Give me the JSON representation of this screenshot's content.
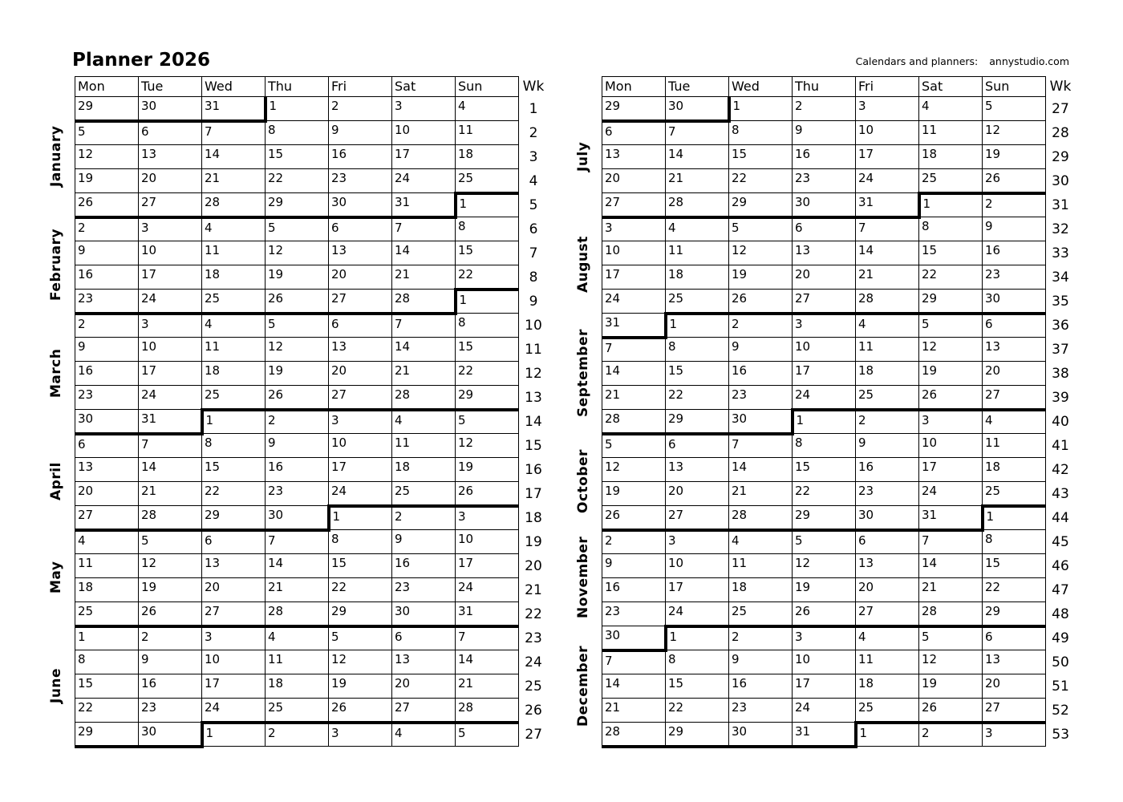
{
  "title": "Planner 2026",
  "credit": {
    "label": "Calendars and planners:",
    "site": "annystudio.com"
  },
  "day_headers": [
    "Mon",
    "Tue",
    "Wed",
    "Thu",
    "Fri",
    "Sat",
    "Sun"
  ],
  "week_column_header": "Wk",
  "colors": {
    "ink": "#000000",
    "paper": "#ffffff"
  },
  "tables": [
    {
      "name": "january-june",
      "months": [
        {
          "name": "January",
          "rows": 5
        },
        {
          "name": "February",
          "rows": 4
        },
        {
          "name": "March",
          "rows": 5
        },
        {
          "name": "April",
          "rows": 4
        },
        {
          "name": "May",
          "rows": 4
        },
        {
          "name": "June",
          "rows": 5
        }
      ],
      "weeks": [
        {
          "wk": 1,
          "days": [
            29,
            30,
            31,
            1,
            2,
            3,
            4
          ]
        },
        {
          "wk": 2,
          "days": [
            5,
            6,
            7,
            8,
            9,
            10,
            11
          ]
        },
        {
          "wk": 3,
          "days": [
            12,
            13,
            14,
            15,
            16,
            17,
            18
          ]
        },
        {
          "wk": 4,
          "days": [
            19,
            20,
            21,
            22,
            23,
            24,
            25
          ]
        },
        {
          "wk": 5,
          "days": [
            26,
            27,
            28,
            29,
            30,
            31,
            1
          ]
        },
        {
          "wk": 6,
          "days": [
            2,
            3,
            4,
            5,
            6,
            7,
            8
          ]
        },
        {
          "wk": 7,
          "days": [
            9,
            10,
            11,
            12,
            13,
            14,
            15
          ]
        },
        {
          "wk": 8,
          "days": [
            16,
            17,
            18,
            19,
            20,
            21,
            22
          ]
        },
        {
          "wk": 9,
          "days": [
            23,
            24,
            25,
            26,
            27,
            28,
            1
          ]
        },
        {
          "wk": 10,
          "days": [
            2,
            3,
            4,
            5,
            6,
            7,
            8
          ]
        },
        {
          "wk": 11,
          "days": [
            9,
            10,
            11,
            12,
            13,
            14,
            15
          ]
        },
        {
          "wk": 12,
          "days": [
            16,
            17,
            18,
            19,
            20,
            21,
            22
          ]
        },
        {
          "wk": 13,
          "days": [
            23,
            24,
            25,
            26,
            27,
            28,
            29
          ]
        },
        {
          "wk": 14,
          "days": [
            30,
            31,
            1,
            2,
            3,
            4,
            5
          ]
        },
        {
          "wk": 15,
          "days": [
            6,
            7,
            8,
            9,
            10,
            11,
            12
          ]
        },
        {
          "wk": 16,
          "days": [
            13,
            14,
            15,
            16,
            17,
            18,
            19
          ]
        },
        {
          "wk": 17,
          "days": [
            20,
            21,
            22,
            23,
            24,
            25,
            26
          ]
        },
        {
          "wk": 18,
          "days": [
            27,
            28,
            29,
            30,
            1,
            2,
            3
          ]
        },
        {
          "wk": 19,
          "days": [
            4,
            5,
            6,
            7,
            8,
            9,
            10
          ]
        },
        {
          "wk": 20,
          "days": [
            11,
            12,
            13,
            14,
            15,
            16,
            17
          ]
        },
        {
          "wk": 21,
          "days": [
            18,
            19,
            20,
            21,
            22,
            23,
            24
          ]
        },
        {
          "wk": 22,
          "days": [
            25,
            26,
            27,
            28,
            29,
            30,
            31
          ]
        },
        {
          "wk": 23,
          "days": [
            1,
            2,
            3,
            4,
            5,
            6,
            7
          ]
        },
        {
          "wk": 24,
          "days": [
            8,
            9,
            10,
            11,
            12,
            13,
            14
          ]
        },
        {
          "wk": 25,
          "days": [
            15,
            16,
            17,
            18,
            19,
            20,
            21
          ]
        },
        {
          "wk": 26,
          "days": [
            22,
            23,
            24,
            25,
            26,
            27,
            28
          ]
        },
        {
          "wk": 27,
          "days": [
            29,
            30,
            1,
            2,
            3,
            4,
            5
          ]
        }
      ]
    },
    {
      "name": "july-december",
      "months": [
        {
          "name": "July",
          "rows": 5
        },
        {
          "name": "August",
          "rows": 4
        },
        {
          "name": "September",
          "rows": 5
        },
        {
          "name": "October",
          "rows": 4
        },
        {
          "name": "November",
          "rows": 4
        },
        {
          "name": "December",
          "rows": 5
        }
      ],
      "weeks": [
        {
          "wk": 27,
          "days": [
            29,
            30,
            1,
            2,
            3,
            4,
            5
          ]
        },
        {
          "wk": 28,
          "days": [
            6,
            7,
            8,
            9,
            10,
            11,
            12
          ]
        },
        {
          "wk": 29,
          "days": [
            13,
            14,
            15,
            16,
            17,
            18,
            19
          ]
        },
        {
          "wk": 30,
          "days": [
            20,
            21,
            22,
            23,
            24,
            25,
            26
          ]
        },
        {
          "wk": 31,
          "days": [
            27,
            28,
            29,
            30,
            31,
            1,
            2
          ]
        },
        {
          "wk": 32,
          "days": [
            3,
            4,
            5,
            6,
            7,
            8,
            9
          ]
        },
        {
          "wk": 33,
          "days": [
            10,
            11,
            12,
            13,
            14,
            15,
            16
          ]
        },
        {
          "wk": 34,
          "days": [
            17,
            18,
            19,
            20,
            21,
            22,
            23
          ]
        },
        {
          "wk": 35,
          "days": [
            24,
            25,
            26,
            27,
            28,
            29,
            30
          ]
        },
        {
          "wk": 36,
          "days": [
            31,
            1,
            2,
            3,
            4,
            5,
            6
          ]
        },
        {
          "wk": 37,
          "days": [
            7,
            8,
            9,
            10,
            11,
            12,
            13
          ]
        },
        {
          "wk": 38,
          "days": [
            14,
            15,
            16,
            17,
            18,
            19,
            20
          ]
        },
        {
          "wk": 39,
          "days": [
            21,
            22,
            23,
            24,
            25,
            26,
            27
          ]
        },
        {
          "wk": 40,
          "days": [
            28,
            29,
            30,
            1,
            2,
            3,
            4
          ]
        },
        {
          "wk": 41,
          "days": [
            5,
            6,
            7,
            8,
            9,
            10,
            11
          ]
        },
        {
          "wk": 42,
          "days": [
            12,
            13,
            14,
            15,
            16,
            17,
            18
          ]
        },
        {
          "wk": 43,
          "days": [
            19,
            20,
            21,
            22,
            23,
            24,
            25
          ]
        },
        {
          "wk": 44,
          "days": [
            26,
            27,
            28,
            29,
            30,
            31,
            1
          ]
        },
        {
          "wk": 45,
          "days": [
            2,
            3,
            4,
            5,
            6,
            7,
            8
          ]
        },
        {
          "wk": 46,
          "days": [
            9,
            10,
            11,
            12,
            13,
            14,
            15
          ]
        },
        {
          "wk": 47,
          "days": [
            16,
            17,
            18,
            19,
            20,
            21,
            22
          ]
        },
        {
          "wk": 48,
          "days": [
            23,
            24,
            25,
            26,
            27,
            28,
            29
          ]
        },
        {
          "wk": 49,
          "days": [
            30,
            1,
            2,
            3,
            4,
            5,
            6
          ]
        },
        {
          "wk": 50,
          "days": [
            7,
            8,
            9,
            10,
            11,
            12,
            13
          ]
        },
        {
          "wk": 51,
          "days": [
            14,
            15,
            16,
            17,
            18,
            19,
            20
          ]
        },
        {
          "wk": 52,
          "days": [
            21,
            22,
            23,
            24,
            25,
            26,
            27
          ]
        },
        {
          "wk": 53,
          "days": [
            28,
            29,
            30,
            31,
            1,
            2,
            3
          ]
        }
      ]
    }
  ]
}
